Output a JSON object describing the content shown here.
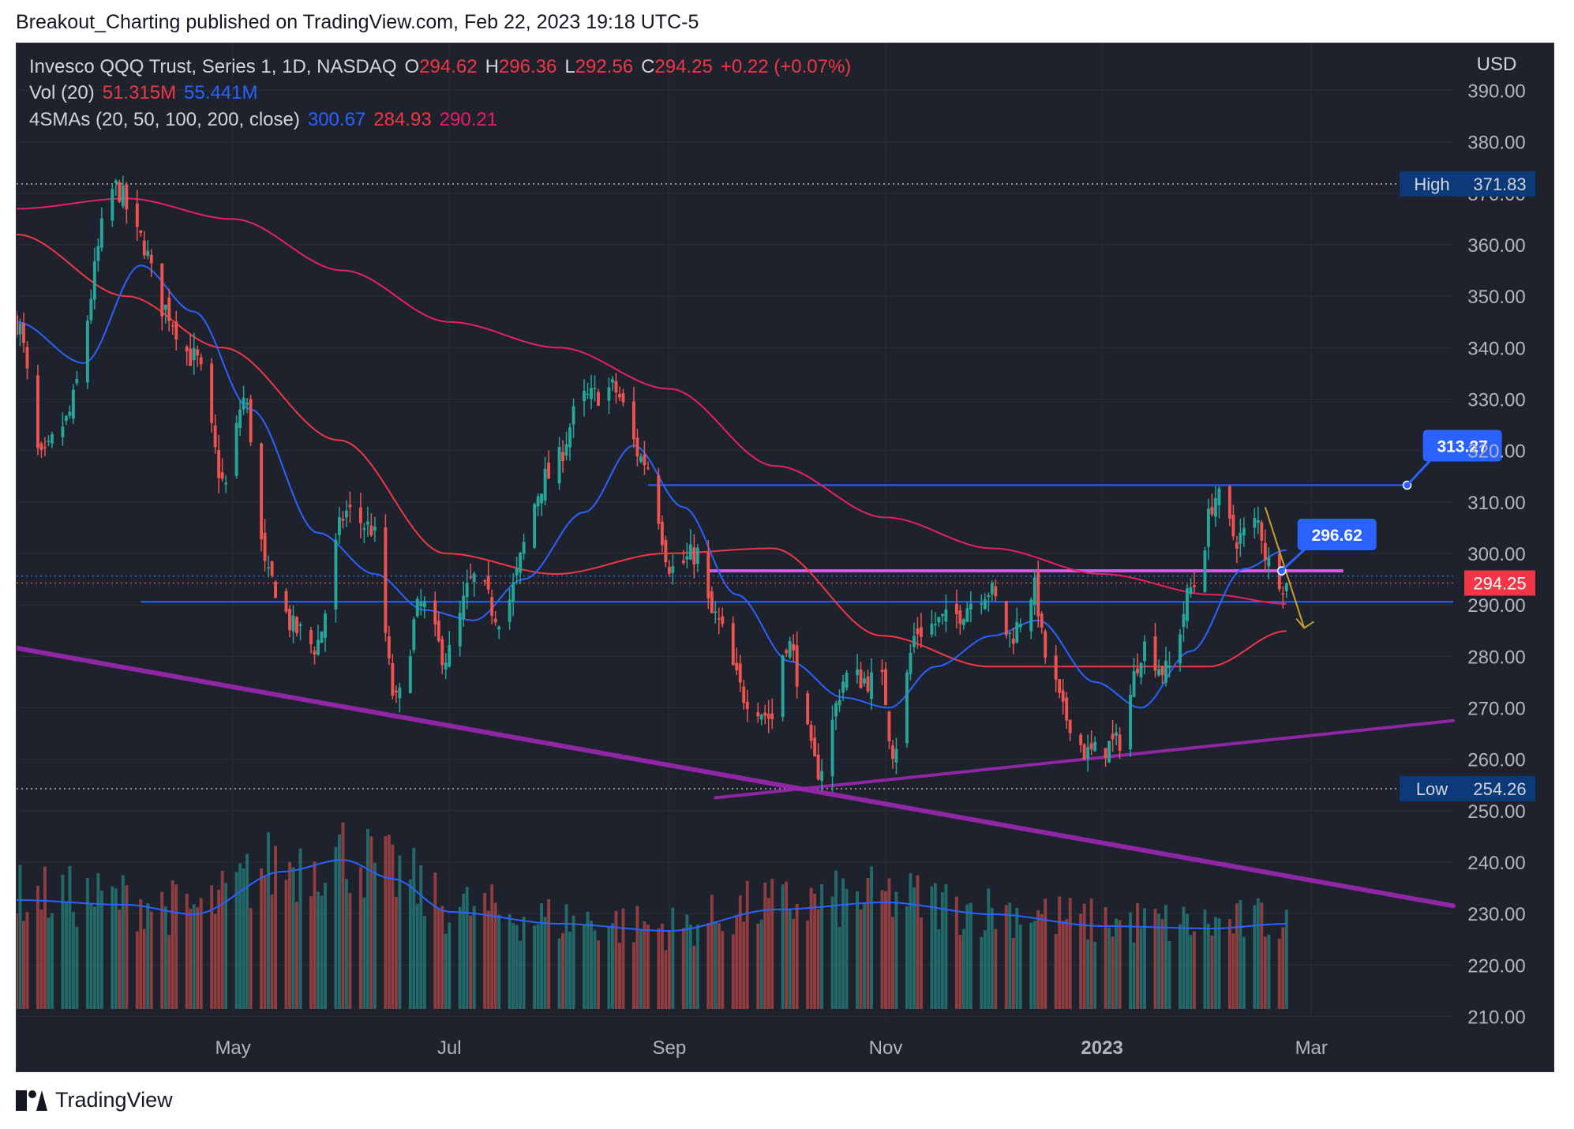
{
  "header": {
    "publisher": "Breakout_Charting published on TradingView.com, Feb 22, 2023 19:18 UTC-5"
  },
  "legend": {
    "symbol": "Invesco QQQ Trust, Series 1, 1D, NASDAQ",
    "open_label": "O",
    "open": "294.62",
    "high_label": "H",
    "high": "296.36",
    "low_label": "L",
    "low": "292.56",
    "close_label": "C",
    "close": "294.25",
    "change": "+0.22 (+0.07%)",
    "vol_label": "Vol (20)",
    "vol_value": "51.315M",
    "vol_ma": "55.441M",
    "sma_label": "4SMAs (20, 50, 100, 200, close)",
    "sma_values": [
      "300.67",
      "284.93",
      "290.21"
    ]
  },
  "footer": {
    "brand": "TradingView"
  },
  "colors": {
    "up": "#26a69a",
    "down": "#ef5350",
    "sma20": "#2962ff",
    "sma50": "#f23645",
    "sma200": "#e91e63",
    "trendline": "#9c27b0",
    "level": "#2962ff",
    "price_badge": "#f23645"
  },
  "chart_data": {
    "type": "candlestick",
    "currency": "USD",
    "ylim": [
      205,
      393
    ],
    "y_ticks": [
      210,
      220,
      230,
      240,
      250,
      260,
      270,
      280,
      290,
      300,
      310,
      320,
      330,
      340,
      350,
      360,
      370,
      380,
      390
    ],
    "x_ticks": [
      {
        "label": "May",
        "date": "2022-05-01",
        "bold": false
      },
      {
        "label": "Jul",
        "date": "2022-07-01",
        "bold": false
      },
      {
        "label": "Sep",
        "date": "2022-09-01",
        "bold": false
      },
      {
        "label": "Nov",
        "date": "2022-11-01",
        "bold": false
      },
      {
        "label": "2023",
        "date": "2023-01-01",
        "bold": true
      },
      {
        "label": "Mar",
        "date": "2023-03-01",
        "bold": false
      }
    ],
    "x_range": [
      "2022-03-01",
      "2023-04-10"
    ],
    "high_marker": {
      "label": "High",
      "value": 371.83
    },
    "low_marker": {
      "label": "Low",
      "value": 254.26
    },
    "last_price": {
      "value": 294.25,
      "label": "294.25"
    },
    "level_callouts": [
      {
        "label": "313.27",
        "value": 313.27,
        "from": "2022-08-26",
        "to": "2023-03-28"
      },
      {
        "label": "296.62",
        "value": 296.62,
        "from": "2022-09-12",
        "to": "2023-03-10"
      }
    ],
    "horizontal_levels": [
      {
        "value": 290.6,
        "from": "2022-04-05",
        "to": "2023-04-10"
      }
    ],
    "trendlines": [
      {
        "from": [
          "2022-03-01",
          281.6
        ],
        "to": [
          "2023-04-10",
          231.5
        ],
        "width": 6
      },
      {
        "from": [
          "2022-09-14",
          252.5
        ],
        "to": [
          "2023-04-10",
          267.5
        ],
        "width": 4
      }
    ],
    "projection_arrow": {
      "from": [
        "2023-02-16",
        309
      ],
      "to": [
        "2023-02-27",
        285.5
      ]
    },
    "price_keypoints": [
      [
        "2022-03-01",
        345
      ],
      [
        "2022-03-08",
        318
      ],
      [
        "2022-03-14",
        325
      ],
      [
        "2022-03-29",
        371
      ],
      [
        "2022-04-05",
        361
      ],
      [
        "2022-04-11",
        348
      ],
      [
        "2022-04-20",
        338
      ],
      [
        "2022-04-29",
        313
      ],
      [
        "2022-05-04",
        330
      ],
      [
        "2022-05-11",
        295
      ],
      [
        "2022-05-19",
        285
      ],
      [
        "2022-05-24",
        282
      ],
      [
        "2022-06-02",
        308
      ],
      [
        "2022-06-09",
        305
      ],
      [
        "2022-06-16",
        271
      ],
      [
        "2022-06-23",
        290
      ],
      [
        "2022-06-30",
        280
      ],
      [
        "2022-07-08",
        295
      ],
      [
        "2022-07-15",
        288
      ],
      [
        "2022-07-29",
        315
      ],
      [
        "2022-08-08",
        330
      ],
      [
        "2022-08-16",
        332
      ],
      [
        "2022-08-25",
        318
      ],
      [
        "2022-09-02",
        297
      ],
      [
        "2022-09-09",
        300
      ],
      [
        "2022-09-13",
        288
      ],
      [
        "2022-09-23",
        272
      ],
      [
        "2022-09-30",
        268
      ],
      [
        "2022-10-04",
        283
      ],
      [
        "2022-10-13",
        258
      ],
      [
        "2022-10-21",
        276
      ],
      [
        "2022-10-31",
        275
      ],
      [
        "2022-11-03",
        262
      ],
      [
        "2022-11-10",
        285
      ],
      [
        "2022-11-18",
        287
      ],
      [
        "2022-11-30",
        293
      ],
      [
        "2022-12-06",
        284
      ],
      [
        "2022-12-13",
        293
      ],
      [
        "2022-12-16",
        280
      ],
      [
        "2022-12-22",
        268
      ],
      [
        "2022-12-28",
        261
      ],
      [
        "2023-01-05",
        263
      ],
      [
        "2023-01-13",
        282
      ],
      [
        "2023-01-19",
        277
      ],
      [
        "2023-01-27",
        294
      ],
      [
        "2023-02-02",
        311
      ],
      [
        "2023-02-08",
        303
      ],
      [
        "2023-02-14",
        306
      ],
      [
        "2023-02-17",
        298
      ],
      [
        "2023-02-22",
        294.25
      ]
    ],
    "sma20_keypoints": [
      [
        "2022-03-01",
        345
      ],
      [
        "2022-03-20",
        337
      ],
      [
        "2022-04-05",
        356
      ],
      [
        "2022-04-20",
        347
      ],
      [
        "2022-05-06",
        328
      ],
      [
        "2022-05-25",
        304
      ],
      [
        "2022-06-10",
        296
      ],
      [
        "2022-06-24",
        289
      ],
      [
        "2022-07-08",
        287
      ],
      [
        "2022-07-22",
        295
      ],
      [
        "2022-08-08",
        308
      ],
      [
        "2022-08-22",
        321
      ],
      [
        "2022-09-05",
        309
      ],
      [
        "2022-09-20",
        292
      ],
      [
        "2022-10-05",
        279
      ],
      [
        "2022-10-20",
        272
      ],
      [
        "2022-11-02",
        270
      ],
      [
        "2022-11-15",
        278
      ],
      [
        "2022-12-01",
        284
      ],
      [
        "2022-12-14",
        287
      ],
      [
        "2022-12-30",
        275
      ],
      [
        "2023-01-12",
        270
      ],
      [
        "2023-01-26",
        281
      ],
      [
        "2023-02-10",
        297
      ],
      [
        "2023-02-22",
        300.67
      ]
    ],
    "sma50_keypoints": [
      [
        "2022-03-01",
        362
      ],
      [
        "2022-04-01",
        350
      ],
      [
        "2022-04-28",
        340
      ],
      [
        "2022-05-31",
        322
      ],
      [
        "2022-06-30",
        300
      ],
      [
        "2022-07-31",
        296
      ],
      [
        "2022-08-31",
        300
      ],
      [
        "2022-09-30",
        301
      ],
      [
        "2022-10-31",
        284
      ],
      [
        "2022-11-30",
        278
      ],
      [
        "2022-12-31",
        278
      ],
      [
        "2023-01-31",
        278
      ],
      [
        "2023-02-22",
        284.93
      ]
    ],
    "sma200_keypoints": [
      [
        "2022-03-01",
        367
      ],
      [
        "2022-04-01",
        369
      ],
      [
        "2022-05-01",
        365
      ],
      [
        "2022-06-01",
        355
      ],
      [
        "2022-07-01",
        345
      ],
      [
        "2022-08-01",
        340
      ],
      [
        "2022-09-01",
        332
      ],
      [
        "2022-10-01",
        317
      ],
      [
        "2022-11-01",
        307
      ],
      [
        "2022-12-01",
        301
      ],
      [
        "2023-01-01",
        296
      ],
      [
        "2023-02-01",
        292
      ],
      [
        "2023-02-22",
        290.21
      ]
    ],
    "volume_ma_keypoints": [
      [
        "2022-03-01",
        0.46
      ],
      [
        "2022-04-01",
        0.44
      ],
      [
        "2022-04-20",
        0.4
      ],
      [
        "2022-05-15",
        0.58
      ],
      [
        "2022-06-01",
        0.63
      ],
      [
        "2022-06-15",
        0.55
      ],
      [
        "2022-07-01",
        0.41
      ],
      [
        "2022-08-01",
        0.36
      ],
      [
        "2022-09-01",
        0.33
      ],
      [
        "2022-10-01",
        0.42
      ],
      [
        "2022-11-01",
        0.45
      ],
      [
        "2022-12-01",
        0.4
      ],
      [
        "2023-01-01",
        0.35
      ],
      [
        "2023-02-01",
        0.34
      ],
      [
        "2023-02-22",
        0.36
      ]
    ]
  }
}
